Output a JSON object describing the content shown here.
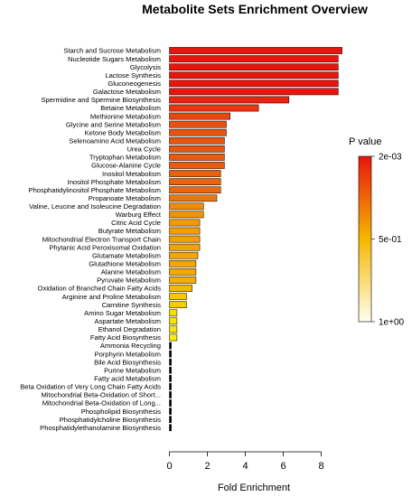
{
  "chart_data": {
    "type": "bar",
    "orientation": "horizontal",
    "title": "Metabolite Sets Enrichment Overview",
    "xlabel": "Fold Enrichment",
    "ylabel": "",
    "xlim": [
      0,
      9
    ],
    "xticks": [
      0,
      2,
      4,
      6,
      8
    ],
    "grid": false,
    "legend": {
      "title": "P value",
      "placement": "right",
      "ticks": [
        "2e-03",
        "5e-01",
        "1e+00"
      ],
      "colors": {
        "low_p": "#e8150f",
        "mid_p": "#f5b700",
        "high_p": "#fffff0"
      }
    },
    "categories": [
      "Starch and Sucrose Metabolism",
      "Nucleotide Sugars Metabolism",
      "Glycolysis",
      "Lactose Synthesis",
      "Gluconeogenesis",
      "Galactose Metabolism",
      "Spermidine and Spermine Biosynthesis",
      "Betaine Metabolism",
      "Methionine Metabolism",
      "Glycine and Serine Metabolism",
      "Ketone Body Metabolism",
      "Selenoamino Acid Metabolism",
      "Urea Cycle",
      "Tryptophan Metabolism",
      "Glucose-Alanine Cycle",
      "Inositol Metabolism",
      "Inositol Phosphate Metabolism",
      "Phosphatidylinositol Phosphate Metabolism",
      "Propanoate Metabolism",
      "Valine, Leucine and Isoleucine Degradation",
      "Warburg Effect",
      "Citric Acid Cycle",
      "Butyrate Metabolism",
      "Mitochondrial Electron Transport Chain",
      "Phytanic Acid Peroxisomal Oxidation",
      "Glutamate Metabolism",
      "Glutathione Metabolism",
      "Alanine Metabolism",
      "Pyruvate Metabolism",
      "Oxidation of Branched Chain Fatty Acids",
      "Arginine and Proline Metabolism",
      "Carnitine Synthesis",
      "Amino Sugar Metabolism",
      "Aspartate Metabolism",
      "Ethanol Degradation",
      "Fatty Acid Biosynthesis",
      "Ammonia Recycling",
      "Porphyrin Metabolism",
      "Bile Acid Biosynthesis",
      "Purine Metabolism",
      "Fatty acid Metabolism",
      "Beta Oxidation of Very Long Chain Fatty Acids",
      "Mitochondrial Beta-Oxidation of Short...",
      "Mitochondrial Beta-Oxidation of Long...",
      "Phospholipid Biosynthesis",
      "Phosphatidylcholine Biosynthesis",
      "Phosphatidylethanolamine Biosynthesis"
    ],
    "values": [
      9.1,
      8.9,
      8.9,
      8.9,
      8.9,
      8.9,
      6.3,
      4.7,
      3.2,
      3.0,
      3.0,
      2.9,
      2.9,
      2.9,
      2.9,
      2.7,
      2.7,
      2.7,
      2.5,
      1.8,
      1.8,
      1.6,
      1.6,
      1.6,
      1.6,
      1.5,
      1.4,
      1.4,
      1.4,
      1.2,
      0.9,
      0.9,
      0.4,
      0.4,
      0.4,
      0.4,
      0.1,
      0.1,
      0.1,
      0.1,
      0.1,
      0.1,
      0.1,
      0.1,
      0.1,
      0.1,
      0.1
    ],
    "colors": [
      "#e8150f",
      "#e8150f",
      "#e8150f",
      "#e8150f",
      "#e8150f",
      "#e8150f",
      "#e8230f",
      "#e8360f",
      "#e8470f",
      "#e85110",
      "#e85110",
      "#e85510",
      "#e85510",
      "#e85b10",
      "#e85b10",
      "#e86310",
      "#e86310",
      "#e86810",
      "#e87810",
      "#ee8c08",
      "#ee9408",
      "#f09a05",
      "#f19d05",
      "#f19f04",
      "#f1a204",
      "#f2a503",
      "#f2a703",
      "#f2aa02",
      "#f3ac02",
      "#f3b800",
      "#f5c800",
      "#f5cc00",
      "#f7e000",
      "#f7e400",
      "#f8e800",
      "#f9ec00",
      "#000000",
      "#000000",
      "#000000",
      "#000000",
      "#000000",
      "#000000",
      "#000000",
      "#000000",
      "#000000",
      "#000000",
      "#000000"
    ]
  }
}
